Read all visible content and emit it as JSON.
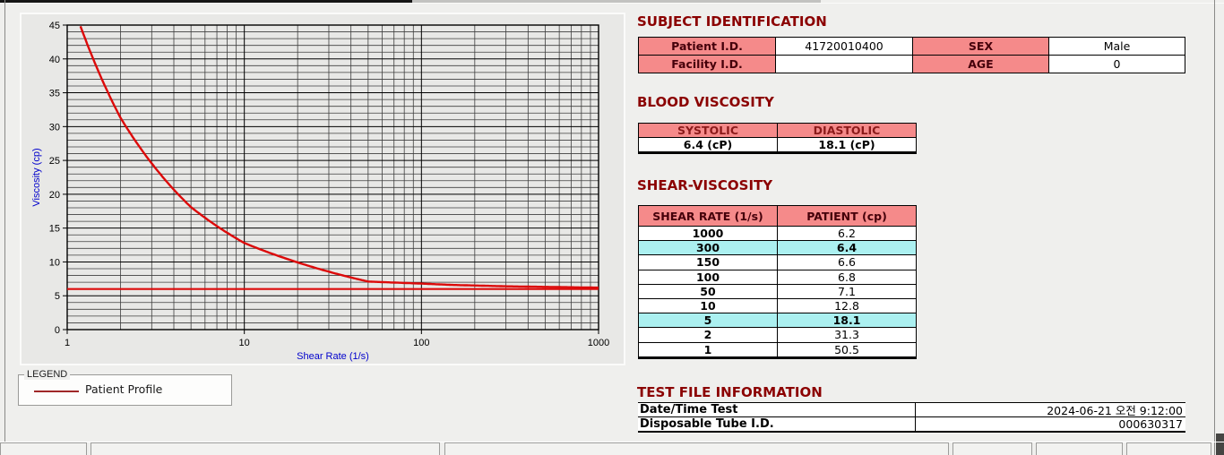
{
  "titles": {
    "subject": "SUBJECT IDENTIFICATION",
    "blood": "BLOOD VISCOSITY",
    "shear": "SHEAR-VISCOSITY",
    "testfile": "TEST FILE INFORMATION"
  },
  "subject_table": {
    "rows": [
      {
        "label1": "Patient I.D.",
        "value1": "41720010400",
        "label2": "SEX",
        "value2": "Male"
      },
      {
        "label1": "Facility I.D.",
        "value1": "",
        "label2": "AGE",
        "value2": "0"
      }
    ]
  },
  "blood_viscosity": {
    "headers": [
      "SYSTOLIC",
      "DIASTOLIC"
    ],
    "values": [
      "6.4 (cP)",
      "18.1 (cP)"
    ]
  },
  "shear_viscosity": {
    "headers": [
      "SHEAR RATE (1/s)",
      "PATIENT (cp)"
    ],
    "rows": [
      {
        "rate": "1000",
        "value": "6.2",
        "highlight": false
      },
      {
        "rate": "300",
        "value": "6.4",
        "highlight": true
      },
      {
        "rate": "150",
        "value": "6.6",
        "highlight": false
      },
      {
        "rate": "100",
        "value": "6.8",
        "highlight": false
      },
      {
        "rate": "50",
        "value": "7.1",
        "highlight": false
      },
      {
        "rate": "10",
        "value": "12.8",
        "highlight": false
      },
      {
        "rate": "5",
        "value": "18.1",
        "highlight": true
      },
      {
        "rate": "2",
        "value": "31.3",
        "highlight": false
      },
      {
        "rate": "1",
        "value": "50.5",
        "highlight": false
      }
    ]
  },
  "test_file": {
    "rows": [
      {
        "label": "Date/Time Test",
        "value": "2024-06-21  오전 9:12:00"
      },
      {
        "label": "Disposable Tube I.D.",
        "value": "000630317"
      }
    ]
  },
  "legend": {
    "box_label": "LEGEND",
    "entries": [
      {
        "label": "Patient Profile",
        "color": "#a02828"
      }
    ]
  },
  "colors": {
    "section_title": "#8b0000",
    "table_header_bg": "#f58a8a",
    "table_header_text": "#45000a",
    "highlight_row_bg": "#abf0f0",
    "curve": "#dc0a0a",
    "axis_title": "#0000cc",
    "grid_minor": "#3f3f3f",
    "grid_major": "#000000"
  },
  "chart_data": {
    "type": "line",
    "title": "",
    "xlabel": "Shear Rate (1/s)",
    "ylabel": "Viscosity (cp)",
    "x_scale": "log",
    "xlim": [
      1,
      1000
    ],
    "ylim": [
      0,
      45
    ],
    "x_ticks": [
      1,
      10,
      100,
      1000
    ],
    "y_ticks": [
      0,
      5,
      10,
      15,
      20,
      25,
      30,
      35,
      40,
      45
    ],
    "grid": "log minor verticals; horizontal lines every 1 unit",
    "legend_position": "below-left",
    "series": [
      {
        "name": "Patient Profile",
        "color": "#dc0a0a",
        "x": [
          1,
          2,
          5,
          10,
          50,
          100,
          150,
          300,
          1000
        ],
        "y": [
          50.5,
          31.3,
          18.1,
          12.8,
          7.1,
          6.8,
          6.6,
          6.4,
          6.2
        ],
        "note": "curve clipped at ylim max 45 near x=1.2"
      },
      {
        "name": "baseline",
        "color": "#dc0a0a",
        "x": [
          1,
          1000
        ],
        "y": [
          6.0,
          6.0
        ]
      }
    ]
  }
}
